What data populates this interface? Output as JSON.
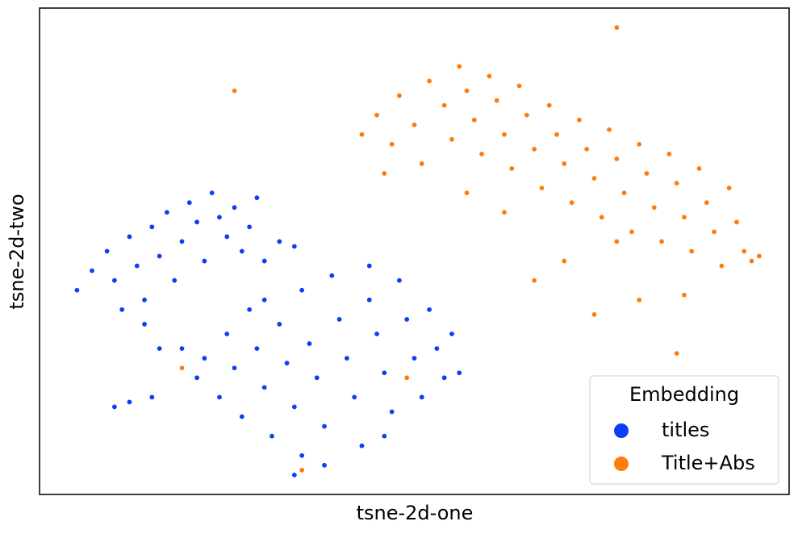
{
  "chart_data": {
    "type": "scatter",
    "x_label": "tsne-2d-one",
    "y_label": "tsne-2d-two",
    "xlim": [
      0,
      100
    ],
    "ylim": [
      0,
      100
    ],
    "legend_title": "Embedding",
    "legend": "lower right",
    "series": [
      {
        "name": "titles",
        "color": "#0a3ff5",
        "x": [
          5,
          7,
          9,
          10,
          12,
          13,
          14,
          15,
          16,
          17,
          18,
          19,
          20,
          21,
          22,
          23,
          24,
          25,
          26,
          27,
          28,
          29,
          30,
          32,
          34,
          11,
          14,
          16,
          10,
          12,
          15,
          19,
          21,
          22,
          24,
          25,
          26,
          27,
          28,
          29,
          30,
          31,
          32,
          33,
          34,
          35,
          35,
          36,
          37,
          38,
          39,
          40,
          41,
          42,
          43,
          44,
          45,
          46,
          47,
          48,
          49,
          50,
          51,
          52,
          53,
          54,
          55,
          56,
          34,
          38,
          30,
          44,
          46
        ],
        "y": [
          42,
          46,
          50,
          44,
          53,
          47,
          40,
          55,
          49,
          58,
          44,
          52,
          60,
          56,
          48,
          62,
          57,
          53,
          59,
          50,
          55,
          61,
          48,
          52,
          51,
          38,
          35,
          30,
          18,
          19,
          20,
          30,
          24,
          28,
          20,
          33,
          26,
          16,
          38,
          30,
          22,
          12,
          35,
          27,
          18,
          42,
          8,
          31,
          24,
          14,
          45,
          36,
          28,
          20,
          10,
          40,
          33,
          25,
          17,
          44,
          36,
          28,
          20,
          38,
          30,
          24,
          33,
          25,
          4,
          6,
          40,
          47,
          12
        ]
      },
      {
        "name": "Title+Abs",
        "color": "#ff7c0a",
        "x": [
          43,
          45,
          47,
          48,
          50,
          51,
          52,
          54,
          55,
          56,
          57,
          58,
          59,
          60,
          61,
          62,
          63,
          64,
          65,
          66,
          67,
          68,
          69,
          70,
          71,
          72,
          73,
          74,
          75,
          76,
          77,
          78,
          79,
          80,
          81,
          82,
          83,
          84,
          85,
          86,
          87,
          88,
          89,
          90,
          91,
          92,
          93,
          94,
          95,
          74,
          80,
          86,
          66,
          70,
          77,
          57,
          62,
          96,
          46,
          77,
          26,
          85,
          19,
          49,
          35
        ],
        "y": [
          74,
          78,
          72,
          82,
          76,
          68,
          85,
          80,
          73,
          88,
          83,
          77,
          70,
          86,
          81,
          74,
          67,
          84,
          78,
          71,
          63,
          80,
          74,
          68,
          60,
          77,
          71,
          65,
          57,
          75,
          69,
          62,
          54,
          72,
          66,
          59,
          52,
          70,
          64,
          57,
          50,
          67,
          60,
          54,
          47,
          63,
          56,
          50,
          48,
          37,
          40,
          41,
          44,
          48,
          52,
          62,
          58,
          49,
          66,
          96,
          83,
          29,
          26,
          24,
          5
        ]
      }
    ]
  }
}
